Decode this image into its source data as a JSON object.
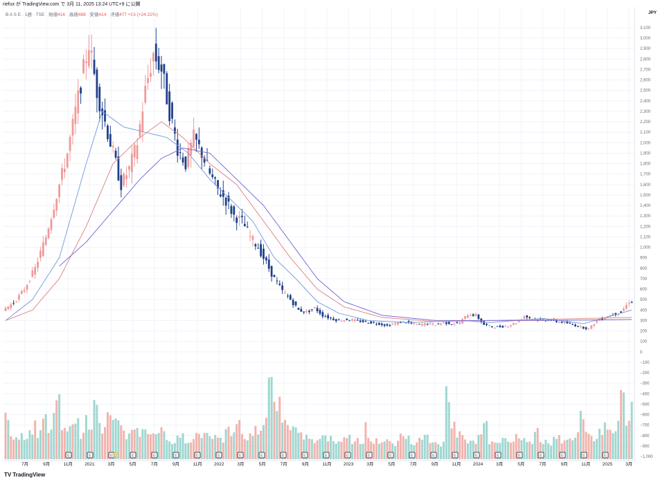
{
  "header": {
    "publisher": "riefux が TradingView.com で 3月 11, 2025 13:24 UTC+9 に公開"
  },
  "legend": {
    "symbol": "B A S E · 1週 · TSE",
    "open_label": "始値",
    "open_value": "416",
    "high_label": "高値",
    "high_value": "488",
    "low_label": "安値",
    "low_value": "414",
    "close_label": "終値",
    "close_value": "477",
    "change": "+93 (+24.22%)"
  },
  "axis": {
    "currency": "JPY"
  },
  "footer": {
    "brand": "TradingView",
    "logo_icon": "tradingview-logo-icon"
  },
  "colors": {
    "up": "#ef9a9a",
    "down": "#1e3f8a",
    "vol_up": "#efa7a0",
    "vol_down": "#8fd0c9",
    "ma_short": "#7ba2d9",
    "ma_mid": "#df8a8a",
    "ma_long": "#7b6fd6",
    "grid": "#f0f3fa"
  },
  "chart_data": {
    "type": "candlestick",
    "interval": "weekly",
    "price_axis": {
      "min": -1000,
      "max": 3100,
      "step": 100
    },
    "x_labels": [
      "7月",
      "9月",
      "11月",
      "2021",
      "3月",
      "5月",
      "7月",
      "9月",
      "11月",
      "2022",
      "3月",
      "5月",
      "7月",
      "9月",
      "11月",
      "2023",
      "3月",
      "5月",
      "7月",
      "9月",
      "11月",
      "2024",
      "3月",
      "5月",
      "7月",
      "9月",
      "11月",
      "2025",
      "3月"
    ],
    "earnings_marker": "E",
    "dividend_marker": "D",
    "price_path": [
      [
        0,
        400
      ],
      [
        4,
        470
      ],
      [
        8,
        600
      ],
      [
        12,
        800
      ],
      [
        16,
        1100
      ],
      [
        20,
        1500
      ],
      [
        24,
        1900
      ],
      [
        27,
        2300
      ],
      [
        30,
        2700
      ],
      [
        32,
        2950
      ],
      [
        35,
        2500
      ],
      [
        38,
        2200
      ],
      [
        41,
        1900
      ],
      [
        44,
        1600
      ],
      [
        47,
        1750
      ],
      [
        50,
        2000
      ],
      [
        53,
        2500
      ],
      [
        56,
        2850
      ],
      [
        59,
        2700
      ],
      [
        62,
        2300
      ],
      [
        65,
        1950
      ],
      [
        68,
        1800
      ],
      [
        71,
        2050
      ],
      [
        74,
        1900
      ],
      [
        77,
        1700
      ],
      [
        80,
        1550
      ],
      [
        83,
        1450
      ],
      [
        86,
        1300
      ],
      [
        89,
        1250
      ],
      [
        92,
        1100
      ],
      [
        95,
        1000
      ],
      [
        98,
        850
      ],
      [
        101,
        700
      ],
      [
        104,
        580
      ],
      [
        107,
        500
      ],
      [
        110,
        400
      ],
      [
        113,
        380
      ],
      [
        116,
        420
      ],
      [
        119,
        350
      ],
      [
        122,
        320
      ],
      [
        125,
        300
      ],
      [
        128,
        310
      ],
      [
        131,
        300
      ],
      [
        134,
        290
      ],
      [
        137,
        280
      ],
      [
        140,
        270
      ],
      [
        143,
        250
      ],
      [
        146,
        270
      ],
      [
        149,
        290
      ],
      [
        152,
        270
      ],
      [
        155,
        260
      ],
      [
        158,
        270
      ],
      [
        161,
        260
      ],
      [
        164,
        280
      ],
      [
        167,
        270
      ],
      [
        170,
        280
      ],
      [
        173,
        360
      ],
      [
        176,
        350
      ],
      [
        179,
        260
      ],
      [
        182,
        240
      ],
      [
        185,
        240
      ],
      [
        188,
        250
      ],
      [
        191,
        280
      ],
      [
        194,
        340
      ],
      [
        197,
        320
      ],
      [
        200,
        300
      ],
      [
        203,
        310
      ],
      [
        206,
        290
      ],
      [
        209,
        280
      ],
      [
        212,
        260
      ],
      [
        215,
        240
      ],
      [
        218,
        220
      ],
      [
        221,
        300
      ],
      [
        224,
        330
      ],
      [
        227,
        360
      ],
      [
        230,
        380
      ],
      [
        233,
        480
      ]
    ],
    "ma_short": [
      [
        0,
        300
      ],
      [
        10,
        500
      ],
      [
        20,
        900
      ],
      [
        30,
        1800
      ],
      [
        36,
        2300
      ],
      [
        44,
        2150
      ],
      [
        52,
        2100
      ],
      [
        60,
        2050
      ],
      [
        68,
        1900
      ],
      [
        76,
        1650
      ],
      [
        84,
        1450
      ],
      [
        92,
        1250
      ],
      [
        100,
        900
      ],
      [
        108,
        700
      ],
      [
        116,
        480
      ],
      [
        124,
        370
      ],
      [
        135,
        300
      ],
      [
        150,
        280
      ],
      [
        170,
        300
      ],
      [
        180,
        280
      ],
      [
        200,
        320
      ],
      [
        215,
        270
      ],
      [
        233,
        400
      ]
    ],
    "ma_mid": [
      [
        0,
        300
      ],
      [
        10,
        400
      ],
      [
        20,
        700
      ],
      [
        30,
        1200
      ],
      [
        40,
        1800
      ],
      [
        50,
        2050
      ],
      [
        58,
        2200
      ],
      [
        66,
        2050
      ],
      [
        76,
        1800
      ],
      [
        86,
        1600
      ],
      [
        96,
        1250
      ],
      [
        106,
        900
      ],
      [
        116,
        600
      ],
      [
        126,
        430
      ],
      [
        140,
        330
      ],
      [
        160,
        290
      ],
      [
        180,
        300
      ],
      [
        200,
        310
      ],
      [
        233,
        330
      ]
    ],
    "ma_long": [
      [
        20,
        820
      ],
      [
        30,
        1050
      ],
      [
        40,
        1350
      ],
      [
        50,
        1650
      ],
      [
        58,
        1850
      ],
      [
        66,
        1950
      ],
      [
        76,
        1900
      ],
      [
        86,
        1650
      ],
      [
        96,
        1400
      ],
      [
        106,
        1050
      ],
      [
        116,
        700
      ],
      [
        126,
        480
      ],
      [
        140,
        350
      ],
      [
        160,
        300
      ],
      [
        180,
        300
      ],
      [
        200,
        300
      ],
      [
        233,
        310
      ]
    ],
    "volume": {
      "scale_note": "relative volume levels (0-1) shown as bars at the bottom of the chart",
      "levels": [
        0.62,
        0.28,
        0.25,
        0.3,
        0.22,
        0.35,
        0.42,
        0.3,
        0.55,
        0.38,
        0.6,
        0.95,
        0.45,
        0.35,
        0.4,
        0.55,
        0.3,
        0.48,
        0.38,
        0.82,
        0.42,
        0.35,
        0.52,
        0.5,
        0.58,
        0.4,
        0.3,
        0.45,
        0.38,
        0.32,
        0.48,
        0.28,
        0.36,
        0.4,
        0.3,
        0.22,
        0.2,
        0.25,
        0.3,
        0.18,
        0.24,
        0.35,
        0.28,
        0.4,
        0.32,
        0.3,
        0.25,
        0.22,
        0.35,
        0.28,
        0.45,
        0.3,
        0.22,
        0.26,
        0.38,
        0.3,
        0.55,
        1.05,
        0.9,
        0.7,
        0.6,
        0.5,
        0.4,
        0.35,
        0.28,
        0.3,
        0.25,
        0.22,
        0.2,
        0.3,
        0.24,
        0.2,
        0.18,
        0.22,
        0.26,
        0.2,
        0.24,
        0.18,
        0.4,
        0.22,
        0.2,
        0.18,
        0.24,
        0.2,
        0.16,
        0.22,
        0.28,
        0.24,
        0.18,
        0.2,
        0.22,
        0.3,
        0.2,
        0.18,
        0.16,
        0.2,
        0.95,
        0.4,
        0.3,
        0.25,
        0.22,
        0.2,
        0.18,
        0.28,
        0.6,
        0.2,
        0.18,
        0.22,
        0.3,
        0.24,
        0.2,
        0.26,
        0.22,
        0.18,
        0.2,
        0.35,
        0.22,
        0.2,
        0.18,
        0.24,
        0.3,
        0.22,
        0.2,
        0.18,
        0.28,
        0.55,
        0.4,
        0.3,
        0.25,
        0.38,
        0.45,
        0.42,
        0.3,
        0.6,
        0.85,
        0.55,
        1.0
      ]
    }
  }
}
